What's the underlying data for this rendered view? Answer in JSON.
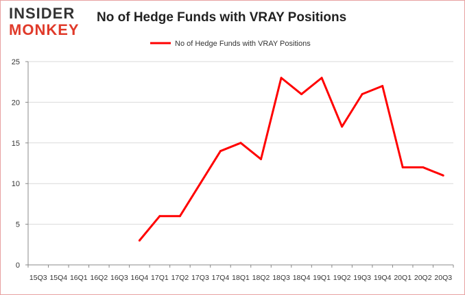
{
  "logo": {
    "line1": "INSIDER",
    "line2": "MONKEY"
  },
  "chart_data": {
    "type": "line",
    "title": "No of Hedge Funds with VRAY Positions",
    "categories": [
      "15Q3",
      "15Q4",
      "16Q1",
      "16Q2",
      "16Q3",
      "16Q4",
      "17Q1",
      "17Q2",
      "17Q3",
      "17Q4",
      "18Q1",
      "18Q2",
      "18Q3",
      "18Q4",
      "19Q1",
      "19Q2",
      "19Q3",
      "19Q4",
      "20Q1",
      "20Q2",
      "20Q3"
    ],
    "series": [
      {
        "name": "No of Hedge Funds with VRAY Positions",
        "color": "#ff0000",
        "values": [
          null,
          null,
          null,
          null,
          null,
          3,
          6,
          6,
          10,
          14,
          15,
          13,
          23,
          21,
          23,
          17,
          21,
          22,
          12,
          12,
          11
        ]
      }
    ],
    "ylim": [
      0,
      25
    ],
    "yticks": [
      0,
      5,
      10,
      15,
      20,
      25
    ],
    "grid": true,
    "legend": "top-center"
  }
}
